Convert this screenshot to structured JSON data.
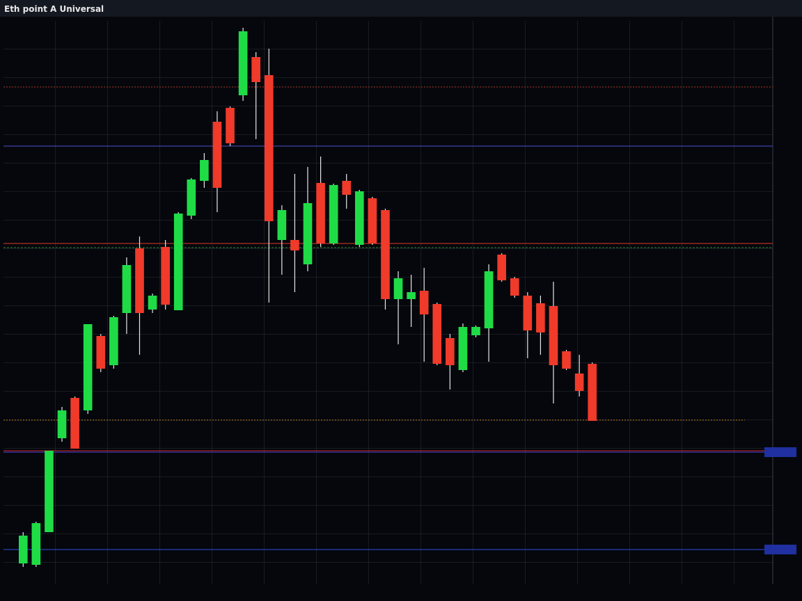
{
  "chart_data": {
    "type": "candlestick",
    "title": "Eth point A Universal",
    "categories": [
      null,
      null,
      null,
      null,
      null,
      null,
      null,
      null,
      null,
      null,
      null,
      null,
      null,
      null,
      null,
      null,
      null,
      null,
      null,
      null,
      null,
      null,
      null,
      null,
      null,
      null,
      null,
      null,
      null,
      null,
      null,
      null,
      null,
      null,
      null,
      null,
      null,
      null,
      null,
      null,
      null,
      null,
      null,
      null,
      null
    ],
    "open": [
      3.0,
      2.8,
      7.5,
      21.0,
      26.8,
      25.0,
      35.7,
      31.5,
      39.0,
      48.3,
      39.5,
      48.5,
      39.4,
      53.0,
      58.0,
      66.5,
      68.5,
      70.3,
      75.8,
      73.2,
      49.5,
      49.5,
      46.0,
      57.7,
      49.0,
      58.0,
      48.8,
      55.5,
      53.8,
      41.0,
      41.0,
      42.2,
      40.3,
      35.4,
      30.8,
      35.8,
      36.8,
      47.4,
      44.0,
      41.5,
      40.4,
      40.0,
      33.5,
      30.3,
      31.7
    ],
    "high": [
      7.5,
      9.0,
      19.2,
      25.5,
      27.0,
      37.4,
      36.0,
      38.6,
      47.0,
      50.0,
      41.8,
      49.5,
      53.5,
      58.4,
      62.0,
      68.0,
      68.7,
      80.0,
      76.5,
      77.0,
      54.5,
      59.0,
      60.0,
      61.5,
      57.6,
      59.0,
      56.7,
      55.7,
      54.0,
      45.0,
      44.5,
      45.5,
      40.5,
      36.0,
      37.5,
      37.2,
      46.0,
      47.6,
      44.2,
      42.0,
      41.5,
      43.5,
      33.7,
      33.0,
      31.9
    ],
    "low": [
      2.5,
      2.5,
      7.5,
      20.5,
      19.5,
      24.5,
      30.5,
      31.0,
      36.0,
      33.0,
      39.0,
      39.5,
      39.4,
      52.5,
      57.0,
      53.5,
      63.0,
      69.5,
      64.0,
      40.5,
      44.5,
      42.0,
      45.0,
      48.5,
      48.8,
      54.0,
      48.5,
      48.8,
      39.5,
      34.5,
      37.0,
      32.0,
      31.5,
      28.0,
      30.5,
      35.5,
      32.0,
      43.5,
      41.2,
      32.5,
      33.0,
      26.0,
      30.8,
      27.0,
      23.5
    ],
    "close": [
      7.0,
      8.8,
      19.2,
      25.0,
      19.5,
      37.4,
      31.0,
      38.4,
      45.9,
      39.0,
      41.5,
      40.2,
      53.3,
      58.2,
      61.0,
      57.0,
      63.4,
      79.5,
      72.2,
      52.2,
      53.8,
      48.0,
      54.8,
      49.0,
      57.4,
      56.0,
      56.5,
      49.0,
      41.0,
      44.0,
      42.0,
      38.8,
      31.7,
      31.5,
      37.0,
      37.0,
      45.0,
      43.7,
      41.5,
      36.5,
      36.2,
      31.5,
      31.0,
      27.8,
      23.5
    ],
    "ylim": [
      0,
      81
    ],
    "up_color": "#1fdc46",
    "down_color": "#f03a2a",
    "grid": true
  }
}
